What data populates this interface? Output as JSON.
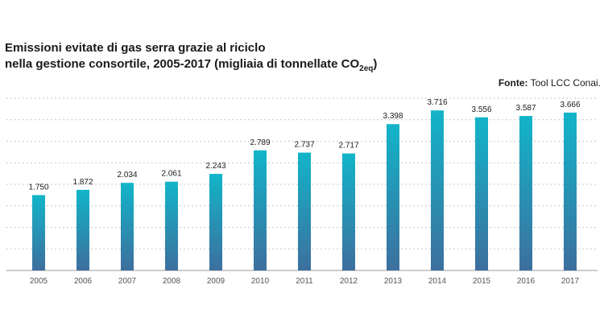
{
  "chart_data": {
    "type": "bar",
    "title_line1": "Emissioni evitate di gas serra grazie al riciclo",
    "title_line2_main": "nella gestione consortile, 2005-2017 (migliaia di tonnellate CO",
    "title_line2_sub": "2eq",
    "title_line2_end": ")",
    "source_label": "Fonte:",
    "source_text": "Tool LCC Conai.",
    "categories": [
      "2005",
      "2006",
      "2007",
      "2008",
      "2009",
      "2010",
      "2011",
      "2012",
      "2013",
      "2014",
      "2015",
      "2016",
      "2017"
    ],
    "values": [
      1750,
      1872,
      2034,
      2061,
      2243,
      2789,
      2737,
      2717,
      3398,
      3716,
      3556,
      3587,
      3666
    ],
    "value_labels": [
      "1.750",
      "1.872",
      "2.034",
      "2.061",
      "2.243",
      "2.789",
      "2.737",
      "2.717",
      "3.398",
      "3.716",
      "3.556",
      "3.587",
      "3.666"
    ],
    "ylim": [
      0,
      4000
    ],
    "grid": true,
    "colors": {
      "bar_top": "#12b5c9",
      "bar_bottom": "#3d6f9e",
      "grid": "#c8c8c8",
      "axis": "#9a9a9a"
    }
  }
}
